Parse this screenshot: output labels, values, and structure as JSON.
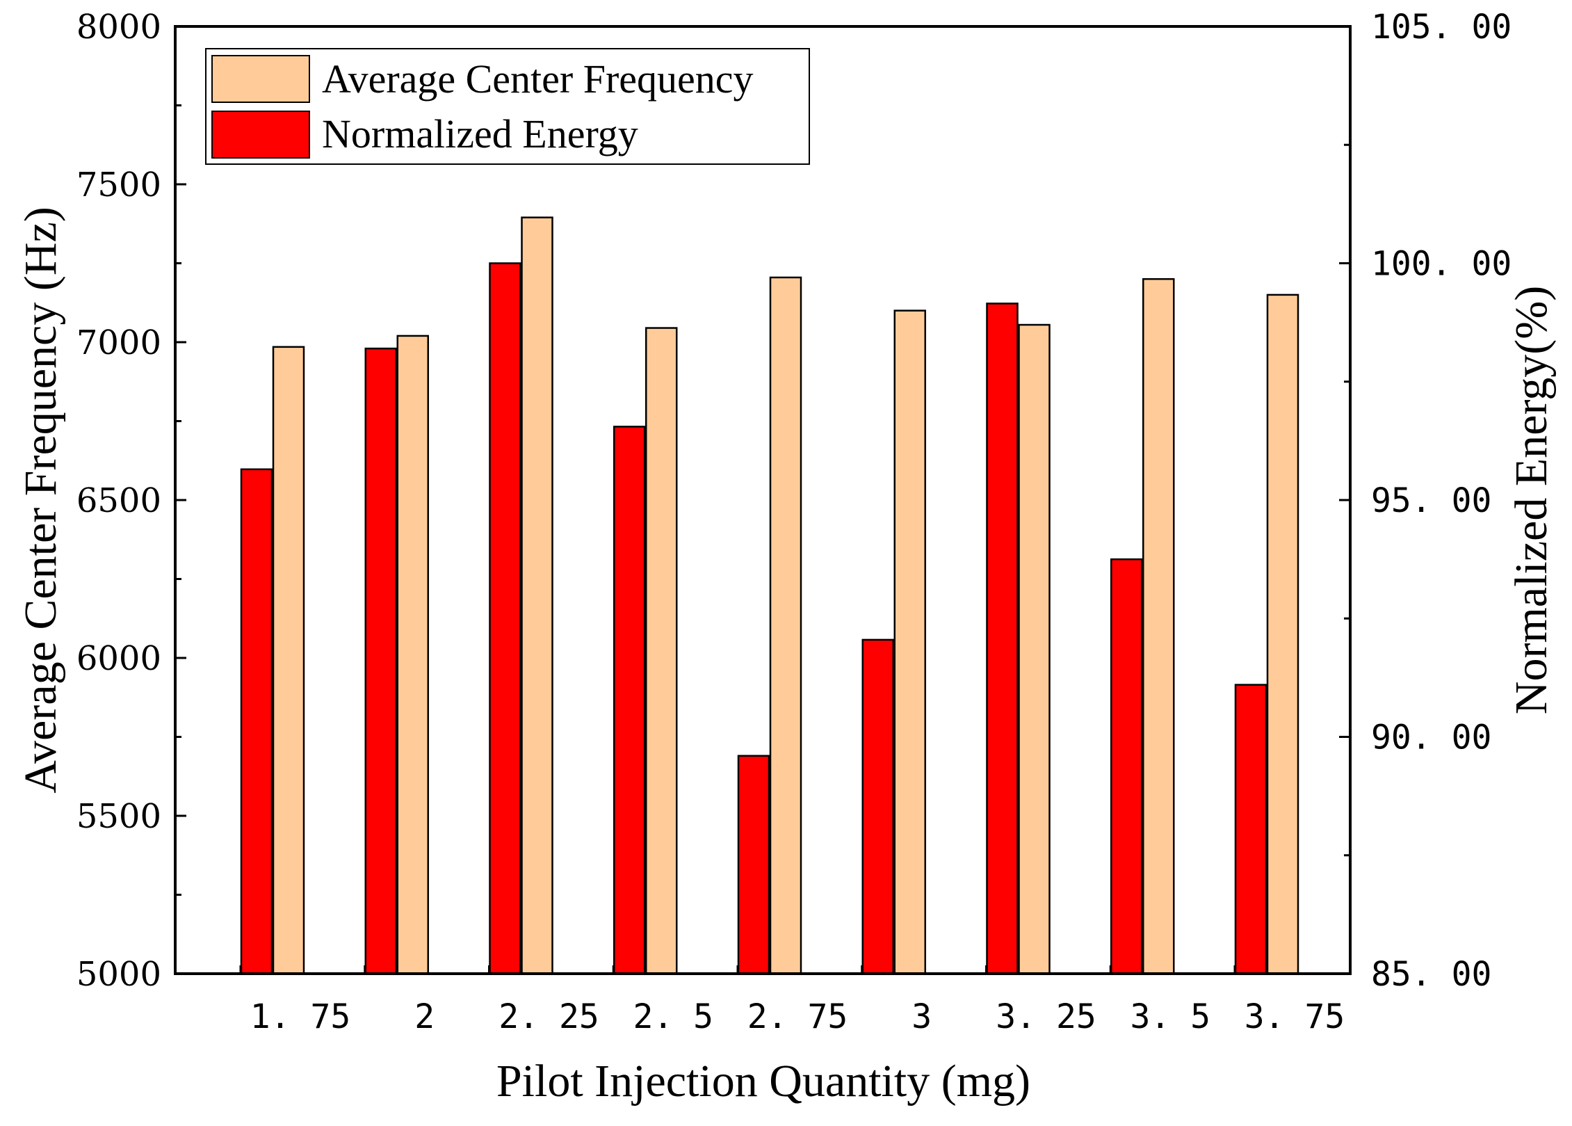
{
  "chart_data": {
    "type": "bar",
    "title": "",
    "categories": [
      "1. 75",
      "2",
      "2. 25",
      "2. 5",
      "2. 75",
      "3",
      "3. 25",
      "3. 5",
      "3. 75"
    ],
    "series": [
      {
        "name": "Normalized Energy",
        "axis": "right",
        "color": "#ff0000",
        "values": [
          95.65,
          98.2,
          100.0,
          96.55,
          89.6,
          92.05,
          99.15,
          93.75,
          91.1
        ]
      },
      {
        "name": "Average Center Frequency",
        "axis": "left",
        "color": "#ffcc99",
        "values": [
          6985,
          7020,
          7395,
          7045,
          7205,
          7100,
          7055,
          7200,
          7150
        ]
      }
    ],
    "xlabel": "Pilot Injection Quantity (mg)",
    "ylabel": "Average Center Frequency (Hz)",
    "ylabel_right": "Normalized Energy(%)",
    "ylim": [
      5000,
      8000
    ],
    "ylim_right": [
      85,
      105
    ],
    "yticks": [
      "5000",
      "5500",
      "6000",
      "6500",
      "7000",
      "7500",
      "8000"
    ],
    "yticks_right": [
      "85. 00",
      "90. 00",
      "95. 00",
      "100. 00",
      "105. 00"
    ],
    "legend_position": "top-left",
    "grid": false
  }
}
